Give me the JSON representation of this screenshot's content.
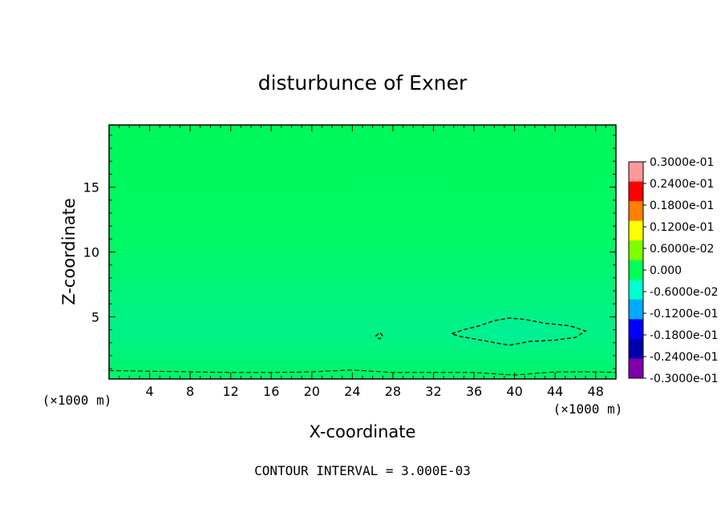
{
  "chart_data": {
    "type": "heatmap",
    "title": "disturbunce of Exner",
    "xlabel": "X-coordinate",
    "ylabel": "Z-coordinate",
    "x_unit_label": "(×1000 m)",
    "x_unit_label_right": "(×1000 m)",
    "xlim": [
      0,
      50
    ],
    "ylim": [
      0.2,
      19.8
    ],
    "x_ticks": [
      4,
      8,
      12,
      16,
      20,
      24,
      28,
      32,
      36,
      40,
      44,
      48
    ],
    "y_ticks": [
      5,
      10,
      15
    ],
    "footer": "CONTOUR INTERVAL = 3.000E-03",
    "colorbar": {
      "labels": [
        "0.3000e-01",
        "0.2400e-01",
        "0.1800e-01",
        "0.1200e-01",
        "0.6000e-02",
        "0.000",
        "-0.6000e-02",
        "-0.1200e-01",
        "-0.1800e-01",
        "-0.2400e-01",
        "-0.3000e-01"
      ],
      "range": [
        -0.03,
        0.03
      ],
      "colors": [
        "#ff9999",
        "#ff0000",
        "#ff7f00",
        "#ffff00",
        "#7fff00",
        "#00ff55",
        "#00ffcc",
        "#00aaff",
        "#0000ff",
        "#0000aa",
        "#7f00aa"
      ]
    },
    "contours": [
      {
        "level": -0.003,
        "style": "dashed",
        "x": [
          33.8,
          35,
          36.5,
          38,
          39.5,
          41,
          43,
          45.5,
          47,
          46,
          44,
          41.5,
          39.5,
          38,
          36,
          34.5,
          33.8
        ],
        "y": [
          3.7,
          4.0,
          4.3,
          4.7,
          4.9,
          4.8,
          4.5,
          4.3,
          3.9,
          3.4,
          3.2,
          3.1,
          2.8,
          3.0,
          3.3,
          3.5,
          3.7
        ]
      },
      {
        "level": -0.003,
        "style": "dashed",
        "x": [
          26.3,
          26.7,
          27.0,
          26.7,
          26.4,
          26.3
        ],
        "y": [
          3.5,
          3.8,
          3.5,
          3.3,
          3.4,
          3.5
        ]
      },
      {
        "level": 0.0,
        "style": "dashed",
        "x": [
          0,
          4,
          8,
          12,
          16,
          20,
          24,
          28,
          32,
          36,
          40,
          44,
          48,
          50
        ],
        "y": [
          0.85,
          0.8,
          0.75,
          0.7,
          0.7,
          0.75,
          0.9,
          0.7,
          0.7,
          0.7,
          0.5,
          0.75,
          0.75,
          0.7
        ]
      }
    ]
  }
}
